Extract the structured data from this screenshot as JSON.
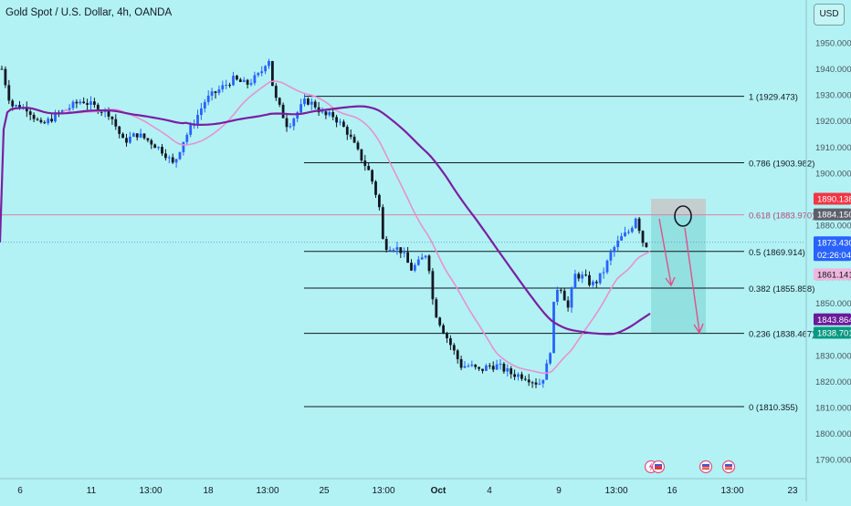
{
  "header": {
    "symbol_title": "Gold Spot / U.S. Dollar, 4h, OANDA",
    "currency_button": "USD"
  },
  "colors": {
    "background": "#b2f2f4",
    "up_candle": "#2962ff",
    "down_candle": "#131722",
    "ma_fast": "#e891d0",
    "ma_slow": "#7b1fa2",
    "fib_line": "#131722",
    "fib_618_line": "#e57ba7",
    "target_zone": "#8fdede",
    "stop_zone": "#c8c8c8",
    "arrow": "#e0508a",
    "label_red": "#f23645",
    "label_gray": "#5d606b",
    "label_blue": "#2962ff",
    "label_pink": "#f0b6de",
    "label_purple": "#6a1b9a",
    "label_teal": "#089981"
  },
  "chart_data": {
    "type": "candlestick",
    "title": "Gold Spot / U.S. Dollar, 4h, OANDA",
    "y_axis": {
      "ylim": [
        1785,
        1960
      ],
      "ticks": [
        1790,
        1800,
        1810,
        1820,
        1830,
        1840,
        1850,
        1860,
        1870,
        1880,
        1890,
        1900,
        1910,
        1920,
        1930,
        1940,
        1950
      ],
      "tick_labels": [
        "1790.000",
        "1800.000",
        "1810.000",
        "1820.000",
        "1830.000",
        "1840.000",
        "1850.000",
        "1860.000",
        "1870.000",
        "1880.000",
        "1890.000",
        "1900.000",
        "1910.000",
        "1920.000",
        "1930.000",
        "1940.000",
        "1950.000"
      ],
      "position": "right",
      "unit": "USD"
    },
    "x_axis": {
      "tick_labels": [
        "6",
        "11",
        "13:00",
        "18",
        "13:00",
        "25",
        "13:00",
        "Oct",
        "4",
        "9",
        "13:00",
        "16",
        "13:00",
        "23"
      ],
      "bold_labels": [
        "Oct"
      ]
    },
    "fibonacci": [
      {
        "level": "1",
        "price": 1929.473,
        "label": "1 (1929.473)"
      },
      {
        "level": "0.786",
        "price": 1903.982,
        "label": "0.786 (1903.982)"
      },
      {
        "level": "0.618",
        "price": 1883.97,
        "label": "0.618 (1883.970)"
      },
      {
        "level": "0.5",
        "price": 1869.914,
        "label": "0.5 (1869.914)"
      },
      {
        "level": "0.382",
        "price": 1855.858,
        "label": "0.382 (1855.858)"
      },
      {
        "level": "0.236",
        "price": 1838.467,
        "label": "0.236 (1838.467)"
      },
      {
        "level": "0",
        "price": 1810.355,
        "label": "0 (1810.355)"
      }
    ],
    "price_labels": [
      {
        "text": "1890.138",
        "value": 1890.138,
        "role": "stop"
      },
      {
        "text": "1884.150",
        "value": 1884.15,
        "role": "entry"
      },
      {
        "text": "1873.430",
        "value": 1873.43,
        "role": "last-price",
        "sub": "02:26:04"
      },
      {
        "text": "1861.141",
        "value": 1861.141,
        "role": "ma-fast"
      },
      {
        "text": "1843.864",
        "value": 1843.864,
        "role": "ma-slow"
      },
      {
        "text": "1838.701",
        "value": 1838.701,
        "role": "target"
      }
    ],
    "last_price": 1873.43,
    "countdown": "02:26:04",
    "short_position": {
      "stop": 1890.138,
      "entry": 1884.15,
      "target": 1838.701
    },
    "event_icons": 3,
    "grid": false,
    "legend": "none"
  }
}
